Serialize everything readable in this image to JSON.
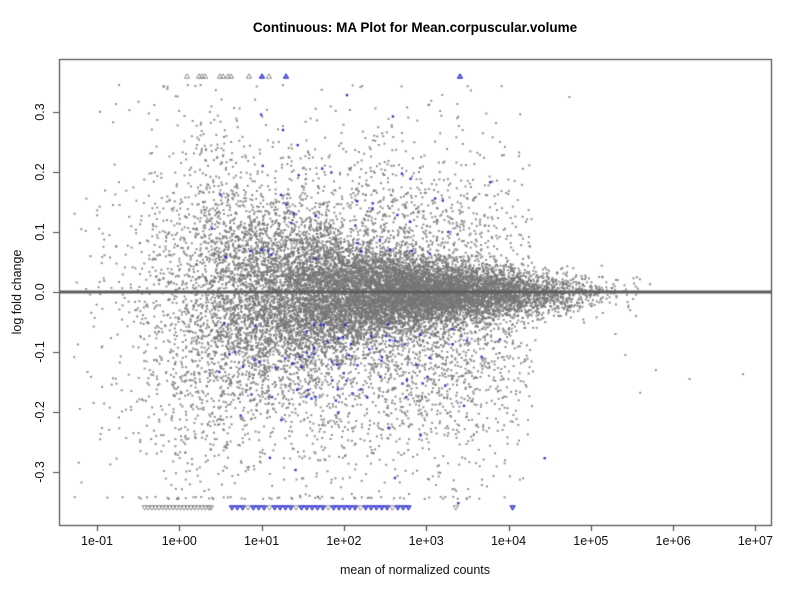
{
  "figure": {
    "background": "#ffffff"
  },
  "chart_data": {
    "type": "scatter",
    "subtype": "MA-plot",
    "title": "Continuous: MA Plot for Mean.corpuscular.volume",
    "xlabel": "mean of normalized counts",
    "ylabel": "log fold change",
    "x_scale": "log10",
    "x_ticks": [
      "1e-01",
      "1e+00",
      "1e+01",
      "1e+02",
      "1e+03",
      "1e+04",
      "1e+05",
      "1e+06",
      "1e+07"
    ],
    "x_tick_log10": [
      -1,
      0,
      1,
      2,
      3,
      4,
      5,
      6,
      7
    ],
    "y_ticks": [
      "0.3",
      "0.2",
      "0.1",
      "0.0",
      "-0.1",
      "-0.2",
      "-0.3"
    ],
    "y_tick_values": [
      0.3,
      0.2,
      0.1,
      0.0,
      -0.1,
      -0.2,
      -0.3
    ],
    "xlim_log10": [
      -1.46,
      7.19
    ],
    "ylim": [
      -0.388,
      0.388
    ],
    "clip_lfc": 0.36,
    "grid": false,
    "legend": null,
    "zero_line": {
      "y": 0.0,
      "color": "#5c5c5c",
      "width": 3.2
    },
    "colors": {
      "nonsig_point": "#767676",
      "sig_point": "#2828cd",
      "box": "#4d4d4d",
      "text": "#111111",
      "triangle_gray": "#8a8a8a",
      "triangle_blue": "#2222cc"
    },
    "point_cloud": {
      "seed": 1337,
      "gray": {
        "n": 17000,
        "x_mix": [
          {
            "w": 0.52,
            "mu": 3.05,
            "sd": 0.85
          },
          {
            "w": 0.48,
            "mu": 1.45,
            "sd": 0.95
          }
        ],
        "x_range": [
          -1.28,
          5.6
        ],
        "y_sd_base": 0.013,
        "y_sd_amp": 0.15,
        "y_sd_decay": 0.75,
        "tight_mean": -0.002,
        "tail_frac": 0.28,
        "tail_neg_frac": 0.62,
        "tail_neg_sd": 0.135,
        "tail_pos_sd": 0.115,
        "tail_offset": 0.01,
        "tail_max_log10x": 4.3,
        "y_clamp": 0.345
      },
      "blue": {
        "n": 115,
        "x_mu": 1.9,
        "x_sd": 0.85,
        "x_range": [
          0.25,
          4.55
        ],
        "neg_frac": 0.6,
        "neg_offset": 0.05,
        "neg_sd": 0.105,
        "neg_clamp": 0.345,
        "pos_offset": 0.05,
        "pos_sd": 0.095,
        "pos_clamp": 0.33
      }
    },
    "gray_points_extra": [
      [
        5.42,
        -0.105
      ],
      [
        5.6,
        -0.168
      ],
      [
        5.79,
        -0.13
      ],
      [
        6.2,
        -0.145
      ],
      [
        6.85,
        -0.137
      ],
      [
        5.52,
        0.023
      ],
      [
        5.72,
        0.013
      ],
      [
        5.3,
        -0.07
      ],
      [
        5.55,
        -0.04
      ],
      [
        4.74,
        0.325
      ]
    ],
    "blue_points_extra": [
      [
        1.26,
        0.27
      ],
      [
        3.78,
        0.183
      ],
      [
        3.39,
        -0.352
      ],
      [
        4.44,
        -0.277
      ],
      [
        2.62,
        -0.31
      ]
    ],
    "triangles_top": [
      {
        "x": 0.094,
        "c": "gray"
      },
      {
        "x": 0.24,
        "c": "gray"
      },
      {
        "x": 0.276,
        "c": "gray"
      },
      {
        "x": 0.312,
        "c": "gray"
      },
      {
        "x": 0.494,
        "c": "gray"
      },
      {
        "x": 0.531,
        "c": "gray"
      },
      {
        "x": 0.592,
        "c": "gray"
      },
      {
        "x": 0.628,
        "c": "gray"
      },
      {
        "x": 0.847,
        "c": "gray"
      },
      {
        "x": 1.005,
        "c": "blue"
      },
      {
        "x": 1.09,
        "c": "gray"
      },
      {
        "x": 1.297,
        "c": "blue"
      },
      {
        "x": 3.41,
        "c": "blue"
      }
    ],
    "triangles_bottom": [
      {
        "x": -0.42,
        "c": "gray"
      },
      {
        "x": -0.377,
        "c": "gray"
      },
      {
        "x": -0.333,
        "c": "gray"
      },
      {
        "x": -0.29,
        "c": "gray"
      },
      {
        "x": -0.247,
        "c": "gray"
      },
      {
        "x": -0.203,
        "c": "gray"
      },
      {
        "x": -0.16,
        "c": "gray"
      },
      {
        "x": -0.117,
        "c": "gray"
      },
      {
        "x": -0.073,
        "c": "gray"
      },
      {
        "x": -0.03,
        "c": "gray"
      },
      {
        "x": 0.013,
        "c": "gray"
      },
      {
        "x": 0.057,
        "c": "gray"
      },
      {
        "x": 0.1,
        "c": "gray"
      },
      {
        "x": 0.143,
        "c": "gray"
      },
      {
        "x": 0.187,
        "c": "gray"
      },
      {
        "x": 0.23,
        "c": "gray"
      },
      {
        "x": 0.274,
        "c": "gray"
      },
      {
        "x": 0.317,
        "c": "gray"
      },
      {
        "x": 0.36,
        "c": "gray"
      },
      {
        "x": 0.385,
        "c": "gray"
      },
      {
        "x": 0.64,
        "c": "blue"
      },
      {
        "x": 0.705,
        "c": "blue"
      },
      {
        "x": 0.77,
        "c": "blue"
      },
      {
        "x": 0.835,
        "c": "gray"
      },
      {
        "x": 0.9,
        "c": "blue"
      },
      {
        "x": 0.965,
        "c": "blue"
      },
      {
        "x": 1.03,
        "c": "blue"
      },
      {
        "x": 1.095,
        "c": "gray"
      },
      {
        "x": 1.16,
        "c": "blue"
      },
      {
        "x": 1.225,
        "c": "blue"
      },
      {
        "x": 1.29,
        "c": "blue"
      },
      {
        "x": 1.355,
        "c": "blue"
      },
      {
        "x": 1.42,
        "c": "gray"
      },
      {
        "x": 1.485,
        "c": "blue"
      },
      {
        "x": 1.55,
        "c": "blue"
      },
      {
        "x": 1.615,
        "c": "blue"
      },
      {
        "x": 1.68,
        "c": "blue"
      },
      {
        "x": 1.745,
        "c": "blue"
      },
      {
        "x": 1.81,
        "c": "gray"
      },
      {
        "x": 1.875,
        "c": "blue"
      },
      {
        "x": 1.94,
        "c": "blue"
      },
      {
        "x": 2.005,
        "c": "blue"
      },
      {
        "x": 2.07,
        "c": "blue"
      },
      {
        "x": 2.135,
        "c": "blue"
      },
      {
        "x": 2.2,
        "c": "gray"
      },
      {
        "x": 2.265,
        "c": "blue"
      },
      {
        "x": 2.33,
        "c": "blue"
      },
      {
        "x": 2.395,
        "c": "blue"
      },
      {
        "x": 2.46,
        "c": "blue"
      },
      {
        "x": 2.525,
        "c": "blue"
      },
      {
        "x": 2.59,
        "c": "gray"
      },
      {
        "x": 2.655,
        "c": "blue"
      },
      {
        "x": 2.72,
        "c": "blue"
      },
      {
        "x": 2.785,
        "c": "blue"
      },
      {
        "x": 3.36,
        "c": "gray"
      },
      {
        "x": 4.05,
        "c": "blue"
      }
    ]
  }
}
